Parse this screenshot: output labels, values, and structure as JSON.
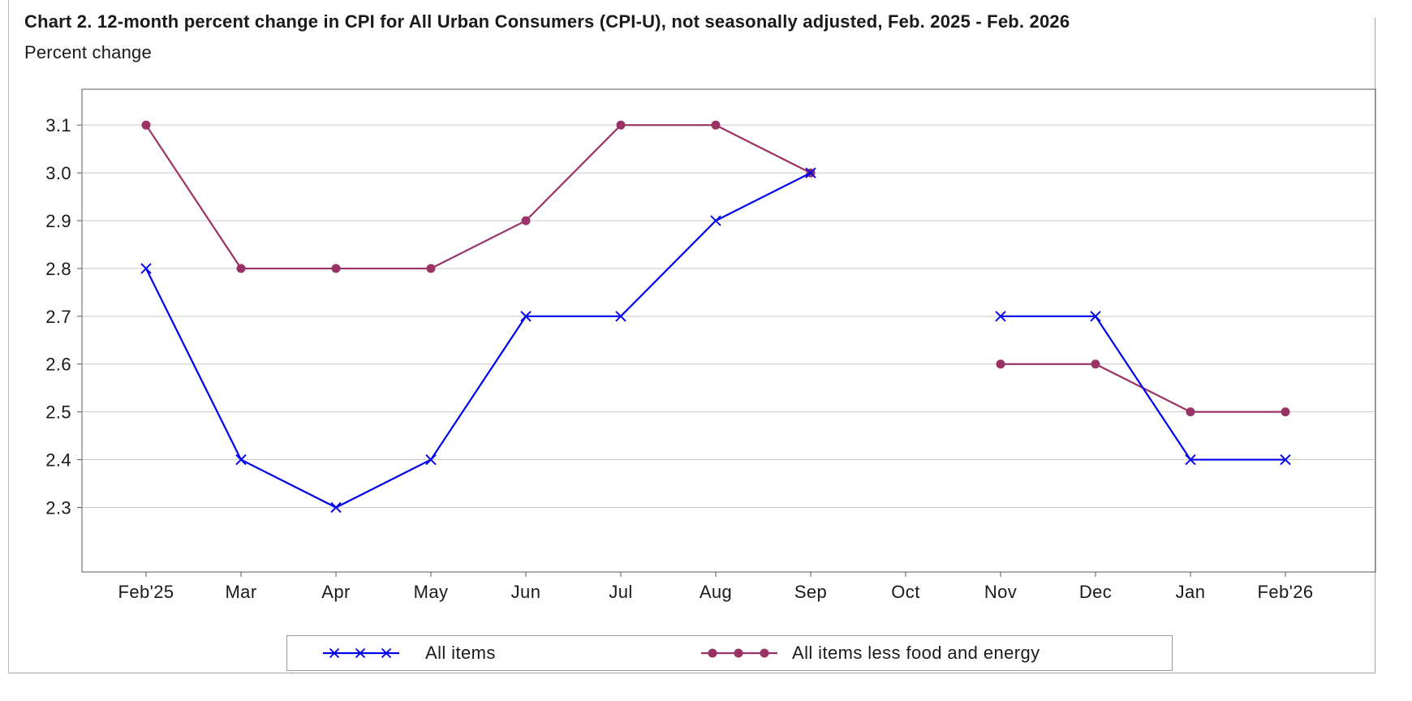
{
  "header": {
    "title": "Chart 2. 12-month percent change in CPI for All Urban Consumers (CPI-U), not seasonally adjusted, Feb. 2025 - Feb. 2026",
    "subtitle": "Percent change"
  },
  "legend": {
    "items": [
      {
        "label": "All items",
        "color": "#0000EE",
        "marker": "x"
      },
      {
        "label": "All items less food and energy",
        "color": "#993366",
        "marker": "dot"
      }
    ]
  },
  "chart_data": {
    "type": "line",
    "title": "Chart 2. 12-month percent change in CPI for All Urban Consumers (CPI-U), not seasonally adjusted, Feb. 2025 - Feb. 2026",
    "ylabel": "Percent change",
    "xlabel": "",
    "categories": [
      "Feb'25",
      "Mar",
      "Apr",
      "May",
      "Jun",
      "Jul",
      "Aug",
      "Sep",
      "Oct",
      "Nov",
      "Dec",
      "Jan",
      "Feb'26"
    ],
    "series": [
      {
        "name": "All items",
        "color": "#0000EE",
        "marker": "x",
        "values": [
          2.8,
          2.4,
          2.3,
          2.4,
          2.7,
          2.7,
          2.9,
          3.0,
          null,
          2.7,
          2.7,
          2.4,
          2.4
        ]
      },
      {
        "name": "All items less food and energy",
        "color": "#993366",
        "marker": "dot",
        "values": [
          3.1,
          2.8,
          2.8,
          2.8,
          2.9,
          3.1,
          3.1,
          3.0,
          null,
          2.6,
          2.6,
          2.5,
          2.5
        ]
      }
    ],
    "yticks": [
      2.3,
      2.4,
      2.5,
      2.6,
      2.7,
      2.8,
      2.9,
      3.0,
      3.1
    ],
    "ylim": [
      2.165,
      3.175
    ],
    "grid": "horizontal",
    "legend_position": "bottom",
    "note": "No data plotted for Oct"
  }
}
